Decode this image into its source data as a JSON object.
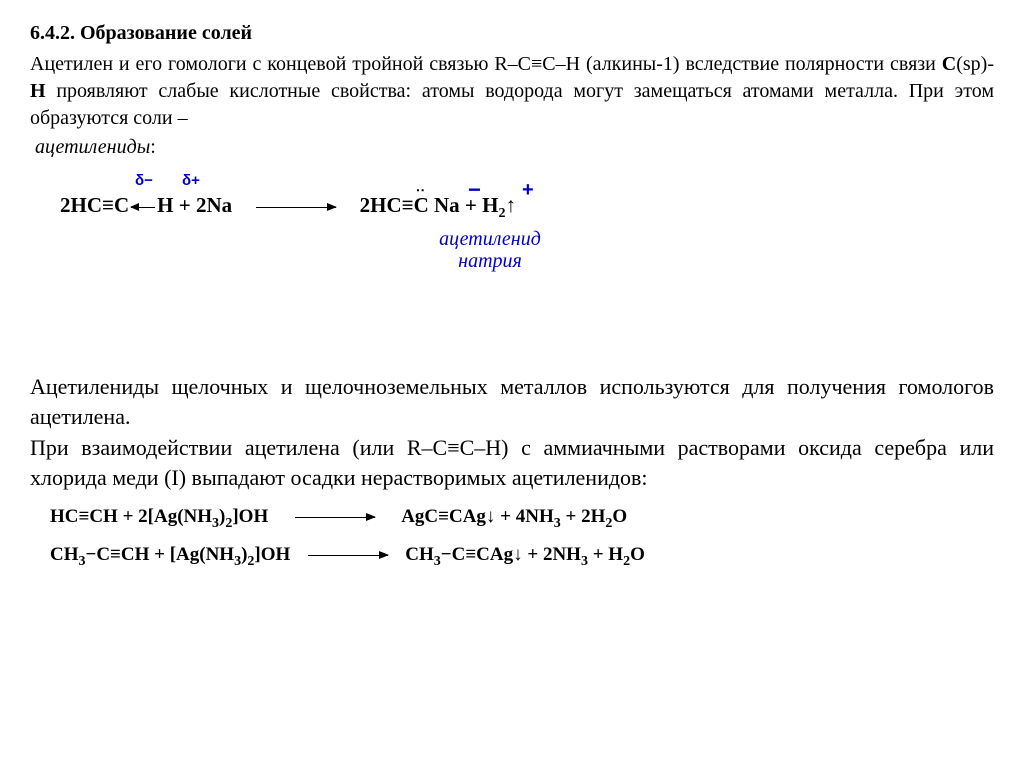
{
  "section": {
    "number": "6.4.2.",
    "title": "Образование солей"
  },
  "p1_a": "Ацетилен и его гомологи с концевой тройной связью R–C≡C–H (алкины-1) вследствие полярности связи ",
  "p1_csp": "С",
  "p1_sp": "(sp)-",
  "p1_h": "H",
  "p1_b": " проявляют слабые кислотные свойства: атомы водорода могут замещаться атомами металла. При этом образуются соли – ",
  "p1_term": "ацетилениды",
  "p1_colon": ":",
  "eq1": {
    "delta_minus": "δ−",
    "delta_plus": "δ+",
    "lhs_a": "2HC≡C",
    "lhs_h": "H + 2Na",
    "rhs": "2HC≡",
    "rhs_c": "C",
    "rhs_na": " Na",
    "rhs_tail": "   +   H",
    "rhs_sub": "2",
    "rhs_arrow": "↑",
    "caption1": "ацетиленид",
    "caption2": "натрия",
    "neg": "−",
    "pos": "+"
  },
  "p2": "Ацетилениды щелочных и щелочноземельных металлов используются для получения гомологов ацетилена.",
  "p3": "При взаимодействии ацетилена (или R–C≡C–H) с аммиачными растворами оксида серебра или хлорида меди (I) выпадают осадки нерастворимых ацетиленидов:",
  "eq2": {
    "r1_l": "HC≡CH + 2[Ag(NH",
    "r1_s1": "3",
    "r1_m": ")",
    "r1_s2": "2",
    "r1_r": "]OH",
    "r1_p": "AgC≡CAg↓ + 4NH",
    "r1_s3": "3",
    "r1_q": " + 2H",
    "r1_s4": "2",
    "r1_o": "O",
    "r2_l": "CH",
    "r2_s1": "3",
    "r2_m": "−C≡CH + [Ag(NH",
    "r2_s2": "3",
    "r2_n": ")",
    "r2_s3": "2",
    "r2_r": "]OH",
    "r2_p": "CH",
    "r2_s4": "3",
    "r2_q": "−C≡CAg↓ + 2NH",
    "r2_s5": "3",
    "r2_t": " + H",
    "r2_s6": "2",
    "r2_o": "O"
  }
}
